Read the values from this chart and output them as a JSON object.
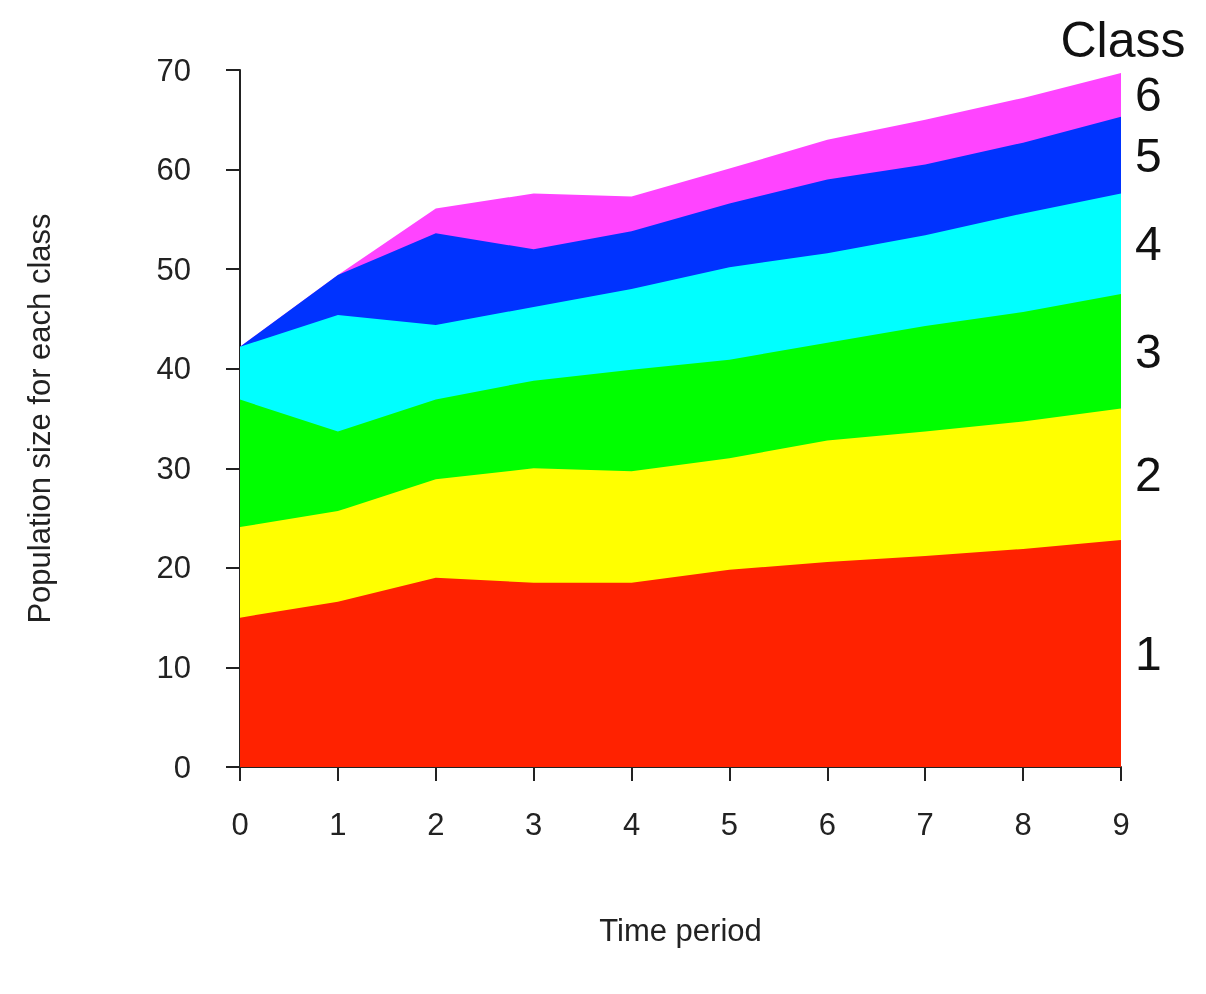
{
  "chart_data": {
    "type": "area",
    "stacked": true,
    "xlabel": "Time period",
    "ylabel": "Population size for each class",
    "legend_title": "Class",
    "legend": "right",
    "grid": false,
    "x": [
      0,
      1,
      2,
      3,
      4,
      5,
      6,
      7,
      8,
      9
    ],
    "xlim": [
      0,
      9
    ],
    "xticks": [
      0,
      1,
      2,
      3,
      4,
      5,
      6,
      7,
      8,
      9
    ],
    "ylim": [
      0,
      70
    ],
    "yticks": [
      0,
      10,
      20,
      30,
      40,
      50,
      60,
      70
    ],
    "series": [
      {
        "name": "1",
        "color": "#ff2200",
        "values": [
          15.0,
          16.6,
          19.0,
          18.5,
          18.5,
          19.8,
          20.6,
          21.2,
          21.9,
          22.8
        ]
      },
      {
        "name": "2",
        "color": "#ffff00",
        "values": [
          9.1,
          9.1,
          9.9,
          11.5,
          11.2,
          11.2,
          12.2,
          12.5,
          12.8,
          13.2
        ]
      },
      {
        "name": "3",
        "color": "#00ff00",
        "values": [
          12.8,
          8.0,
          8.0,
          8.8,
          10.2,
          9.9,
          9.8,
          10.6,
          11.0,
          11.5
        ]
      },
      {
        "name": "4",
        "color": "#00ffff",
        "values": [
          5.3,
          11.7,
          7.5,
          7.4,
          8.1,
          9.3,
          9.0,
          9.1,
          9.9,
          10.1
        ]
      },
      {
        "name": "5",
        "color": "#0033ff",
        "values": [
          0,
          4.0,
          9.2,
          5.8,
          5.8,
          6.4,
          7.4,
          7.1,
          7.1,
          7.7
        ]
      },
      {
        "name": "6",
        "color": "#ff44ff",
        "values": [
          0,
          0,
          2.5,
          5.6,
          3.5,
          3.5,
          4.0,
          4.5,
          4.5,
          4.4
        ]
      }
    ]
  }
}
